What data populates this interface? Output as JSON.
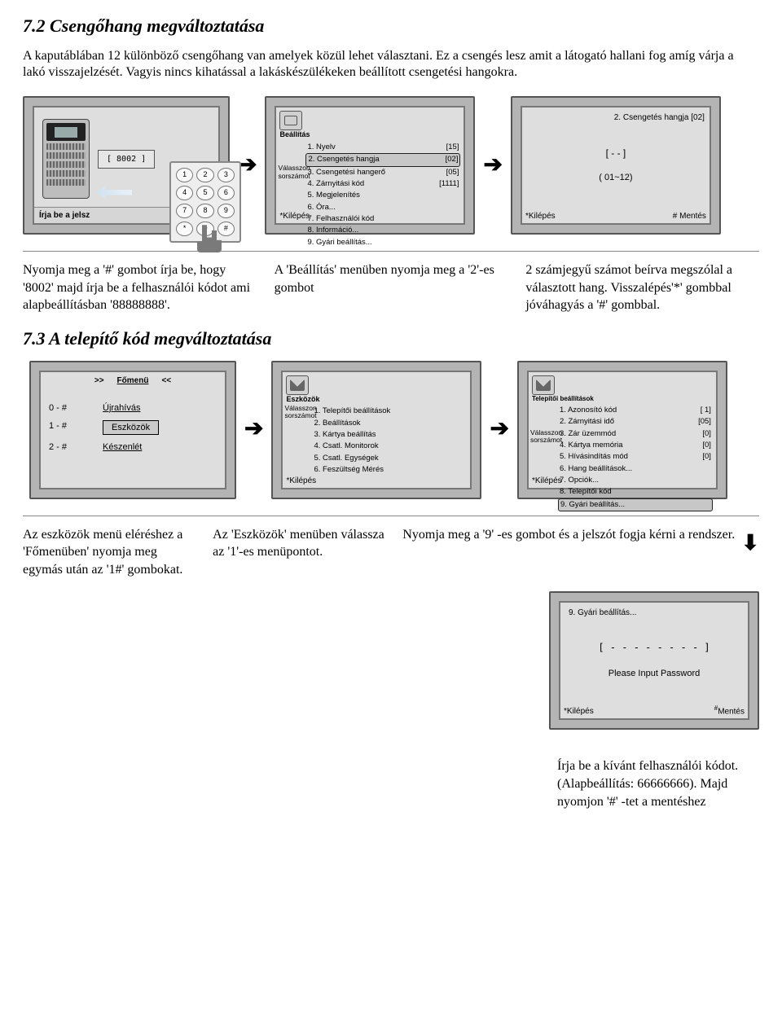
{
  "sec1": {
    "title": "7.2 Csengőhang megváltoztatása",
    "intro": "A kaputáblában 12 különböző csengőhang van amelyek közül lehet választani. Ez a csengés lesz amit a látogató hallani fog amíg várja a lakó visszajelzését. Vagyis nincs kihatással a lakáskészülékeken beállított csengetési hangokra."
  },
  "scr1": {
    "code": "[ 8002 ]",
    "help": "Írja be a jelsz"
  },
  "scr2": {
    "header": "Beállítás",
    "side1": "Válasszon sorszámot",
    "items": [
      {
        "n": "1",
        "t": "Nyelv",
        "v": "[15]"
      },
      {
        "n": "2",
        "t": "Csengetés hangja",
        "v": "[02]",
        "sel": true
      },
      {
        "n": "3",
        "t": "Csengetési hangerő",
        "v": "[05]"
      },
      {
        "n": "4",
        "t": "Zárnyitási kód",
        "v": "[1111]"
      },
      {
        "n": "5",
        "t": "Megjelenítés",
        "v": ""
      },
      {
        "n": "6",
        "t": "Óra...",
        "v": ""
      },
      {
        "n": "7",
        "t": "Felhasználói kód",
        "v": ""
      },
      {
        "n": "8",
        "t": "Információ...",
        "v": ""
      },
      {
        "n": "9",
        "t": "Gyári beállítás...",
        "v": ""
      }
    ],
    "foot": "Kilépés"
  },
  "scr3": {
    "top": "2. Csengetés hangja [02]",
    "mid": "[ - - ]",
    "mid2": "( 01~12)",
    "footL": "Kilépés",
    "footR": "Mentés"
  },
  "instr1": {
    "c1": "Nyomja meg a '#' gombot írja be, hogy '8002' majd írja be a felhasználói kódot ami alapbeállításban '88888888'.",
    "c2": "A 'Beállítás' menüben nyomja meg a '2'-es gombot",
    "c3": "2 számjegyű számot beírva megszólal a választott hang. Visszalépés'*' gombbal jóváhagyás a '#' gombbal."
  },
  "sec2": {
    "title": "7.3 A telepítő kód megváltoztatása"
  },
  "scr4": {
    "tbar": ">>    Főmenü    <<",
    "rows": [
      {
        "k": "0 - #",
        "v": "Újrahívás"
      },
      {
        "k": "1 - #",
        "v": "Eszközök",
        "sel": true
      },
      {
        "k": "2 - #",
        "v": "Készenlét"
      }
    ]
  },
  "scr5": {
    "header": "Eszközök",
    "side1": "Válasszon sorszámot",
    "items": [
      {
        "n": "1",
        "t": "Telepítői beállítások"
      },
      {
        "n": "2",
        "t": "Beállítások"
      },
      {
        "n": "3",
        "t": "Kártya beállítás"
      },
      {
        "n": "4",
        "t": "Csatl. Monitorok"
      },
      {
        "n": "5",
        "t": "Csatl. Egységek"
      },
      {
        "n": "6",
        "t": "Feszültség Mérés"
      }
    ],
    "foot": "Kilépés"
  },
  "scr6": {
    "header": "Telepítői beállítások",
    "side1": "Válasszon sorszámot",
    "items": [
      {
        "n": "1",
        "t": "Azonosító kód",
        "v": "[ 1]"
      },
      {
        "n": "2",
        "t": "Zárnyitási idő",
        "v": "[05]"
      },
      {
        "n": "3",
        "t": "Zár üzemmód",
        "v": "[0]"
      },
      {
        "n": "4",
        "t": "Kártya memória",
        "v": "[0]"
      },
      {
        "n": "5",
        "t": "Hívásindítás mód",
        "v": "[0]"
      },
      {
        "n": "6",
        "t": "Hang beállítások...",
        "v": ""
      },
      {
        "n": "7",
        "t": "Opciók...",
        "v": ""
      },
      {
        "n": "8",
        "t": "Telepítői kód",
        "v": ""
      },
      {
        "n": "9",
        "t": "Gyári beállítás...",
        "v": "",
        "sel": true
      }
    ],
    "foot": "Kilépés"
  },
  "instr2": {
    "c1": "Az eszközök menü eléréshez a 'Főmenüben' nyomja meg egymás után az '1#' gombokat.",
    "c2": "Az 'Eszközök' menüben válassza az '1'-es menüpontot.",
    "c3": "Nyomja meg a '9' -es gombot és a jelszót fogja kérni a rendszer."
  },
  "scr7": {
    "t": "9. Gyári beállítás...",
    "mid": "[ - - - - - - - - ]",
    "msg": "Please Input Password",
    "footL": "Kilépés",
    "footR": "Mentés"
  },
  "final": "Írja be a kívánt felhasználói kódot.(Alapbeállítás: 66666666). Majd nyomjon '#' -tet a mentéshez",
  "arrows": {
    "r": "➔",
    "d": "⬇"
  }
}
